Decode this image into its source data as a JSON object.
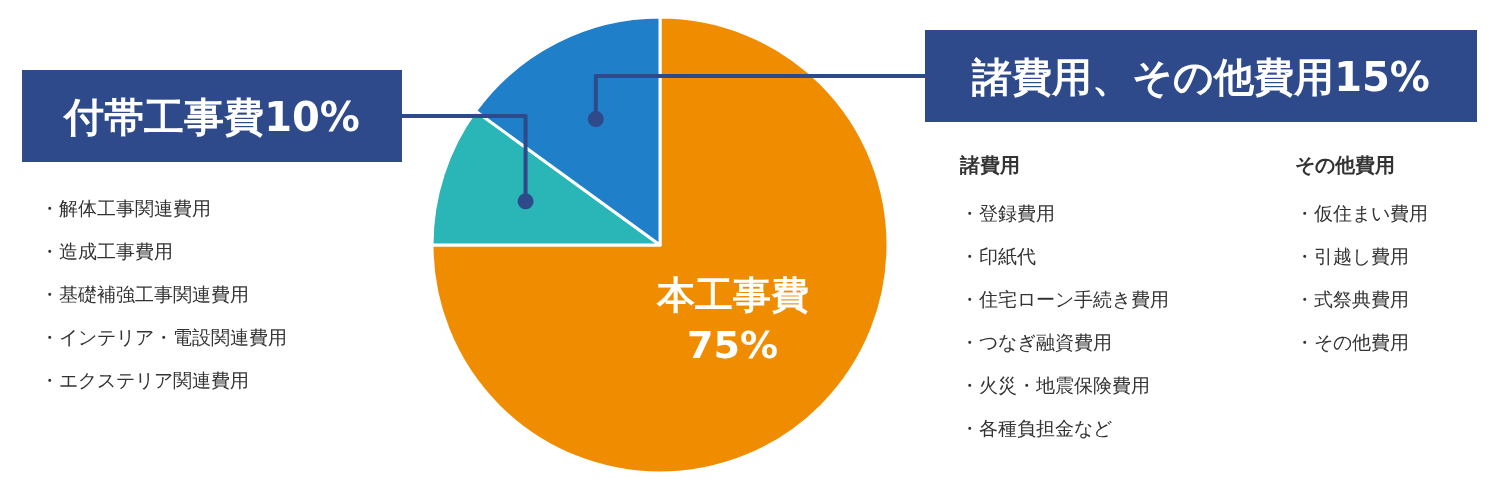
{
  "chart_data": {
    "type": "pie",
    "categories": [
      "本工事費",
      "付帯工事費",
      "諸費用、その他費用"
    ],
    "values": [
      75,
      10,
      15
    ],
    "value_labels": [
      "75%",
      "10%",
      "15%"
    ],
    "colors": [
      "#f08c00",
      "#2ab6b6",
      "#1f7fc8"
    ],
    "annotations": [
      "・解体工事関連費用",
      "・造成工事費用",
      "・基礎補強工事関連費用",
      "・インテリア・電設関連費用",
      "・エクステリア関連費用",
      "諸費用",
      "・登録費用",
      "・印紙代",
      "・住宅ローン手続き費用",
      "・つなぎ融資費用",
      "・火災・地震保険費用",
      "・各種負担金など",
      "その他費用",
      "・仮住まい費用",
      "・引越し費用",
      "・式祭典費用",
      "・その他費用"
    ]
  }
}
